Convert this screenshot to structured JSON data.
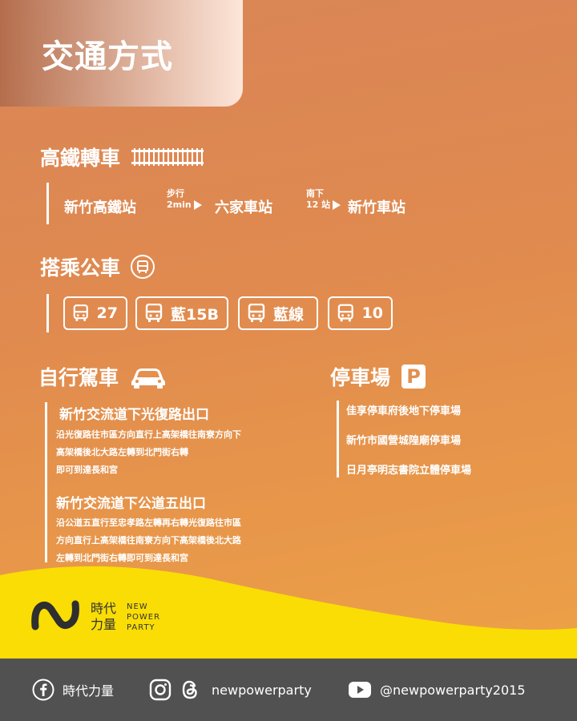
{
  "title": "交通方式",
  "hsr": {
    "heading": "高鐵轉車",
    "station_from": "新竹高鐵站",
    "step1_top": "步行",
    "step1_bottom": "2min",
    "station_mid": "六家車站",
    "step2_top": "南下",
    "step2_bottom": "12 站",
    "station_to": "新竹車站"
  },
  "bus": {
    "heading": "搭乘公車",
    "routes": [
      "27",
      "藍15B",
      "藍線",
      "10"
    ]
  },
  "drive": {
    "heading": "自行駕車",
    "route1_title": "新竹交流道下光復路出口",
    "route1_lines": [
      "沿光復路往市區方向直行上高架橋往南寮方向下",
      "高架橋後北大路左轉到北門街右轉",
      "即可到達長和宮"
    ],
    "route2_title": "新竹交流道下公道五出口",
    "route2_lines": [
      "沿公道五直行至忠孝路左轉再右轉光復路往市區",
      "方向直行上高架橋往南寮方向下高架橋後北大路",
      "左轉到北門街右轉即可到達長和宮"
    ]
  },
  "parking": {
    "heading": "停車場",
    "icon_letter": "P",
    "lots": [
      "佳享停車府後地下停車場",
      "新竹市國營城隍廟停車場",
      "日月亭明志書院立體停車場"
    ]
  },
  "logo": {
    "cn_line1": "時代",
    "cn_line2": "力量",
    "en_line1": "NEW",
    "en_line2": "POWER",
    "en_line3": "PARTY"
  },
  "footer": {
    "facebook": "時代力量",
    "instagram_threads": "newpowerparty",
    "youtube": "@newpowerparty2015"
  },
  "colors": {
    "yellow": "#f9dd05",
    "footer_bg": "#515151",
    "logo_dark": "#2f2f2f"
  }
}
